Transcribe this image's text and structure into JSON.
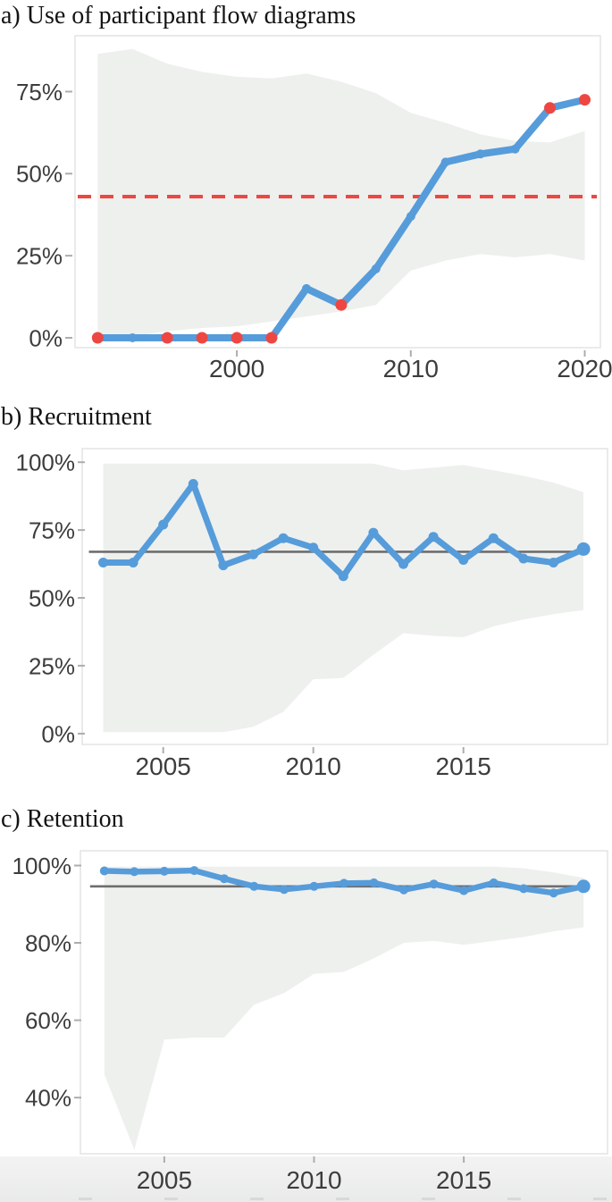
{
  "figure": {
    "kind": "three-panel line chart figure"
  },
  "colors": {
    "line_blue": "#569CDA",
    "marker_red": "#EE4741",
    "band_gray": "#EEF0EE",
    "mean_line_gray": "#6E6E6E",
    "axis_text": "#3D3D3D",
    "panel_border": "#E4E4E4",
    "tick_mark": "#ADADAD",
    "footer_strip": "#EFEFEF"
  },
  "chart_data": [
    {
      "id": "a",
      "type": "line",
      "title": "a) Use of participant flow diagrams",
      "x": [
        1992,
        1994,
        1996,
        1998,
        2000,
        2002,
        2004,
        2006,
        2008,
        2010,
        2012,
        2014,
        2016,
        2018,
        2020
      ],
      "values": [
        0,
        0,
        0,
        0,
        0,
        0,
        15,
        10,
        21,
        37,
        53.5,
        56,
        57.5,
        70,
        72.5
      ],
      "point_colors": [
        "red",
        "blue",
        "red",
        "red",
        "red",
        "red",
        "blue",
        "red",
        "blue",
        "blue",
        "blue",
        "blue",
        "blue",
        "red",
        "red"
      ],
      "band_upper": [
        86.5,
        88,
        83.5,
        81,
        79.5,
        79,
        80.5,
        78,
        74.5,
        68.5,
        65.5,
        62,
        60,
        59.5,
        63
      ],
      "band_lower": [
        0.5,
        0.5,
        2,
        3,
        3.5,
        5,
        6.5,
        8,
        10,
        20.5,
        23.5,
        25.5,
        24.5,
        25.5,
        23.5
      ],
      "reference_line": {
        "value": 43,
        "style": "dashed",
        "color": "red"
      },
      "x_ticks": [
        2000,
        2010,
        2020
      ],
      "y_ticks": [
        0,
        25,
        50,
        75
      ],
      "y_tick_suffix": "%",
      "xlim": [
        1990.7,
        2020.9
      ],
      "ylim": [
        -3,
        92
      ],
      "grid": false,
      "legend": "none"
    },
    {
      "id": "b",
      "type": "line",
      "title": "b) Recruitment",
      "x": [
        2003,
        2004,
        2005,
        2006,
        2007,
        2008,
        2009,
        2010,
        2011,
        2012,
        2013,
        2014,
        2015,
        2016,
        2017,
        2018,
        2019
      ],
      "values": [
        63,
        63,
        77,
        92,
        62,
        66,
        72,
        68.5,
        58,
        74,
        62.5,
        72.5,
        64,
        72,
        64.5,
        63,
        68
      ],
      "point_colors": [
        "blue",
        "blue",
        "blue",
        "blue",
        "blue",
        "blue",
        "blue",
        "blue",
        "blue",
        "blue",
        "blue",
        "blue",
        "blue",
        "blue",
        "blue",
        "blue",
        "blue"
      ],
      "band_upper": [
        99.5,
        99.5,
        99.5,
        99.5,
        99.5,
        99.5,
        99.5,
        99.5,
        99.5,
        99.5,
        97,
        98,
        99,
        97,
        95,
        92.5,
        89
      ],
      "band_lower": [
        0.5,
        0.5,
        0.5,
        0.5,
        0.5,
        2.5,
        8,
        20,
        20.5,
        29,
        37,
        36,
        35.5,
        39.5,
        42,
        44,
        45.5
      ],
      "reference_line": {
        "value": 67,
        "style": "solid",
        "color": "gray"
      },
      "x_ticks": [
        2005,
        2010,
        2015
      ],
      "y_ticks": [
        0,
        25,
        50,
        75,
        100
      ],
      "y_tick_suffix": "%",
      "xlim": [
        2002.3,
        2019.8
      ],
      "ylim": [
        -4,
        105
      ],
      "grid": false,
      "legend": "none"
    },
    {
      "id": "c",
      "type": "line",
      "title": "c) Retention",
      "x": [
        2003,
        2004,
        2005,
        2006,
        2007,
        2008,
        2009,
        2010,
        2011,
        2012,
        2013,
        2014,
        2015,
        2016,
        2017,
        2018,
        2019
      ],
      "values": [
        98.6,
        98.4,
        98.5,
        98.7,
        96.6,
        94.6,
        93.8,
        94.6,
        95.4,
        95.5,
        93.7,
        95.2,
        93.5,
        95.5,
        94,
        92.9,
        94.6
      ],
      "point_colors": [
        "blue",
        "blue",
        "blue",
        "blue",
        "blue",
        "blue",
        "blue",
        "blue",
        "blue",
        "blue",
        "blue",
        "blue",
        "blue",
        "blue",
        "blue",
        "blue",
        "blue"
      ],
      "band_upper": [
        99.7,
        99.7,
        99.7,
        99.7,
        99.7,
        99.7,
        99.7,
        99.7,
        99.7,
        99.7,
        99.7,
        99.7,
        99.7,
        99.7,
        99.3,
        98.2,
        96.8
      ],
      "band_lower": [
        46,
        26.5,
        55,
        55.5,
        55.5,
        64,
        67,
        72,
        72.5,
        76,
        80,
        80.5,
        79.5,
        80.5,
        81.5,
        83,
        84
      ],
      "reference_line": {
        "value": 94.6,
        "style": "solid",
        "color": "gray"
      },
      "x_ticks": [
        2005,
        2010,
        2015
      ],
      "y_ticks": [
        40,
        60,
        80,
        100
      ],
      "y_tick_suffix": "%",
      "xlim": [
        2002.2,
        2019.8
      ],
      "ylim": [
        25.5,
        103.8
      ],
      "grid": false,
      "legend": "none"
    }
  ]
}
